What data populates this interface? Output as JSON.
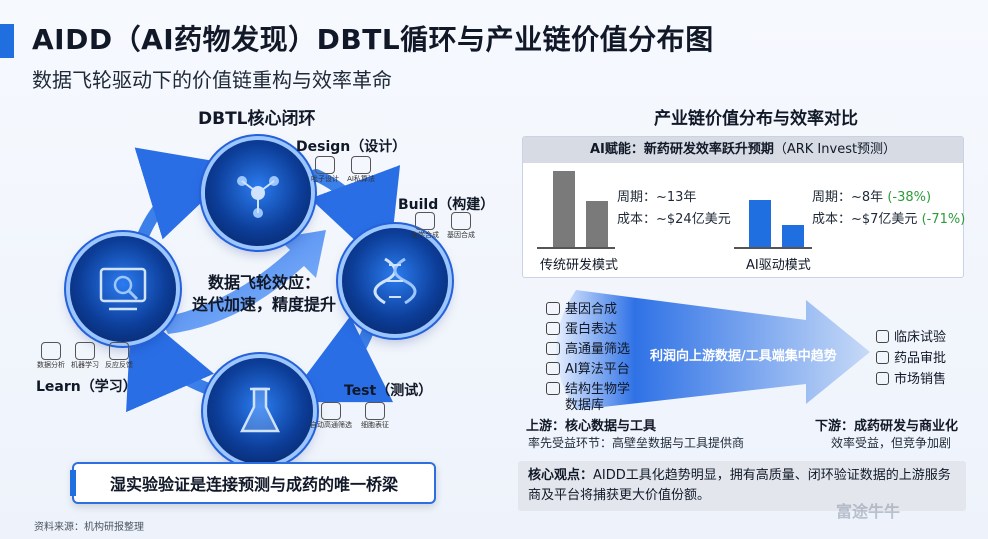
{
  "header": {
    "title": "AIDD（AI药物发现）DBTL循环与产业链价值分布图",
    "subtitle": "数据飞轮驱动下的价值链重构与效率革命"
  },
  "cycle": {
    "title": "DBTL核心闭环",
    "center_line1": "数据飞轮效应：",
    "center_line2": "迭代加速，精度提升",
    "design": {
      "label": "Design（设计）",
      "tools": [
        "吡子设计",
        "AI私算法"
      ]
    },
    "build": {
      "label": "Build（构建）",
      "tools": [
        "化学合成",
        "基因合成"
      ]
    },
    "test": {
      "label": "Test（测试）",
      "tools": [
        "自动高通筛选",
        "细胞表征"
      ]
    },
    "learn": {
      "label": "Learn（学习）",
      "tools": [
        "数据分析",
        "机器学习",
        "反应反馈"
      ]
    },
    "bridge": "湿实验验证是连接预测与成药的唯一桥梁"
  },
  "value_chain": {
    "title": "产业链价值分布与效率对比",
    "panel_head_bold": "AI赋能：新药研发效率跃升预期",
    "panel_head_rest": "（ARK Invest预测）",
    "traditional": {
      "label": "传统研发模式",
      "cycle": "周期：~13年",
      "cost": "成本：~$24亿美元",
      "bar_cycle": 13,
      "bar_cost": 24
    },
    "ai": {
      "label": "AI驱动模式",
      "cycle": "周期：~8年",
      "cycle_delta": "(-38%)",
      "cost": "成本：~$7亿美元",
      "cost_delta": "(-71%)",
      "bar_cycle": 8,
      "bar_cost": 7
    },
    "upstream_items": [
      "基因合成",
      "蛋白表达",
      "高通量筛选",
      "AI算法平台",
      "结构生物学",
      "数据库"
    ],
    "arrow_text": "利润向上游数据/工具端集中趋势",
    "downstream_items": [
      "临床试验",
      "药品审批",
      "市场销售"
    ],
    "upstream_title": "上游：核心数据与工具",
    "upstream_sub": "率先受益环节：高壁垒数据与工具提供商",
    "downstream_title": "下游：成药研发与商业化",
    "downstream_sub": "效率受益，但竞争加剧"
  },
  "core_view": {
    "label": "核心观点：",
    "text": "AIDD工具化趋势明显，拥有高质量、闭环验证数据的上游服务商及平台将捕获更大价值份额。"
  },
  "footer": {
    "source": "资料来源：机构研报整理",
    "watermark": "富途牛牛"
  },
  "colors": {
    "accent": "#1f6fe0",
    "bar_gray": "#7a7a7a",
    "bar_blue": "#1f6fe0",
    "delta_green": "#2e9b3a"
  }
}
